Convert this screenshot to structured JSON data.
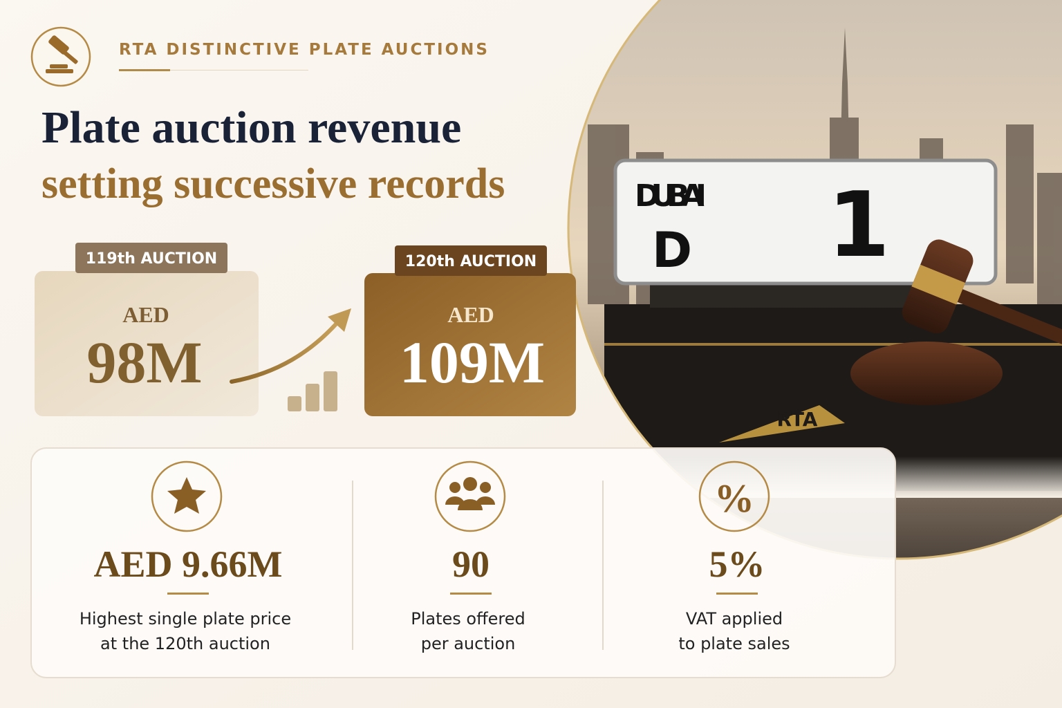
{
  "header": {
    "label": "RTA DISTINCTIVE PLATE AUCTIONS"
  },
  "title": {
    "line1": "Plate auction revenue",
    "line2": "setting successive records"
  },
  "auctions": [
    {
      "label": "119th AUCTION",
      "currency": "AED",
      "amount": "98M"
    },
    {
      "label": "120th AUCTION",
      "currency": "AED",
      "amount": "109M"
    }
  ],
  "photo": {
    "plate_emirate": "DUBAI",
    "plate_code": "D",
    "plate_number": "1",
    "box_logo": "RTA"
  },
  "stats": [
    {
      "value": "AED 9.66M",
      "caption": [
        "Highest single plate price",
        "at the 120th auction"
      ]
    },
    {
      "value": "90",
      "caption": [
        "Plates offered",
        "per auction"
      ]
    },
    {
      "value": "5%",
      "caption": [
        "VAT applied",
        "to plate sales"
      ]
    }
  ]
}
